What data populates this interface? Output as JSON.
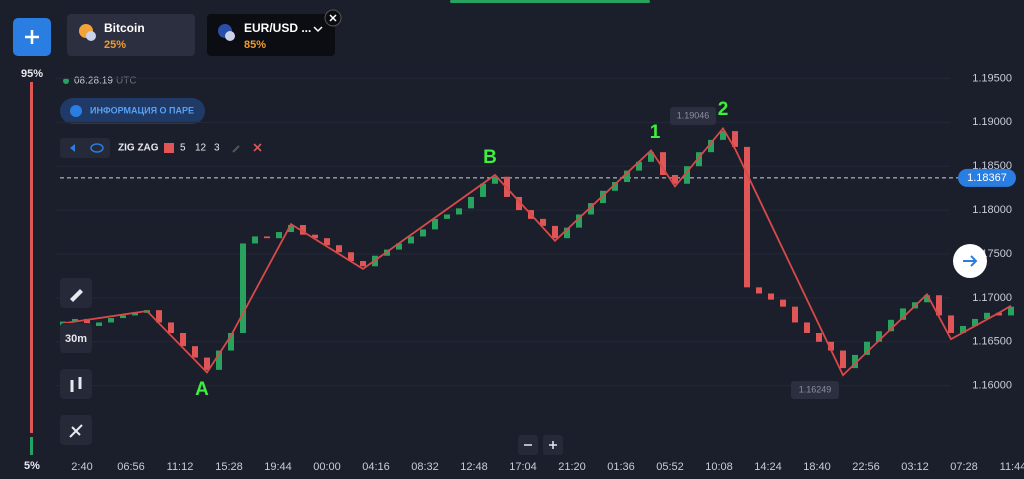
{
  "sidebar": {
    "top_label": "95%",
    "bottom_label": "5%"
  },
  "tabs": [
    {
      "name": "Bitcoin",
      "payout": "25%"
    },
    {
      "name": "EUR/USD ...",
      "payout": "85%"
    }
  ],
  "clock": {
    "time": "08:28:19",
    "zone": "UTC"
  },
  "info_button": "ИНФОРМАЦИЯ О ПАРЕ",
  "indicator": {
    "name": "ZIG ZAG",
    "params": [
      "5",
      "12",
      "3"
    ]
  },
  "timeframe": "30m",
  "chart_data": {
    "type": "candlestick",
    "up_color": "#27a35f",
    "down_color": "#e05656",
    "ylim": [
      1.1521,
      1.1971
    ],
    "yticks": [
      {
        "value": 1.195,
        "label": "1.19500"
      },
      {
        "value": 1.19,
        "label": "1.19000"
      },
      {
        "value": 1.185,
        "label": "1.18500"
      },
      {
        "value": 1.18,
        "label": "1.18000"
      },
      {
        "value": 1.175,
        "label": "1.17500"
      },
      {
        "value": 1.17,
        "label": "1.17000"
      },
      {
        "value": 1.165,
        "label": "1.16500"
      },
      {
        "value": 1.16,
        "label": "1.16000"
      }
    ],
    "xticks": [
      "2:40",
      "06:56",
      "11:12",
      "15:28",
      "19:44",
      "00:00",
      "04:16",
      "08:32",
      "12:48",
      "17:04",
      "21:20",
      "01:36",
      "05:52",
      "10:08",
      "14:24",
      "18:40",
      "22:56",
      "03:12",
      "07:28",
      "11:44"
    ],
    "open": [
      1.1668,
      1.1673,
      1.1676,
      1.1668,
      1.1672,
      1.1677,
      1.168,
      1.1683,
      1.1686,
      1.1672,
      1.166,
      1.1645,
      1.1632,
      1.1618,
      1.164,
      1.166,
      1.1762,
      1.177,
      1.1768,
      1.1775,
      1.1783,
      1.1772,
      1.1768,
      1.176,
      1.1752,
      1.1742,
      1.1736,
      1.1748,
      1.1755,
      1.1762,
      1.177,
      1.1778,
      1.179,
      1.1795,
      1.1802,
      1.1815,
      1.183,
      1.1838,
      1.1815,
      1.18,
      1.179,
      1.1782,
      1.1768,
      1.178,
      1.1795,
      1.1808,
      1.1822,
      1.1832,
      1.1845,
      1.1855,
      1.1866,
      1.184,
      1.183,
      1.185,
      1.1866,
      1.188,
      1.189,
      1.1872,
      1.1712,
      1.1705,
      1.1698,
      1.169,
      1.1672,
      1.166,
      1.165,
      1.164,
      1.162,
      1.1635,
      1.165,
      1.1662,
      1.1675,
      1.1688,
      1.1695,
      1.1703,
      1.168,
      1.166,
      1.1668,
      1.1676,
      1.1683,
      1.168
    ],
    "close": [
      1.1673,
      1.1676,
      1.1668,
      1.1672,
      1.1677,
      1.168,
      1.1683,
      1.1686,
      1.1672,
      1.166,
      1.1645,
      1.1632,
      1.1618,
      1.164,
      1.166,
      1.1762,
      1.177,
      1.1768,
      1.1775,
      1.1783,
      1.1772,
      1.1768,
      1.176,
      1.1752,
      1.1742,
      1.1736,
      1.1748,
      1.1755,
      1.1762,
      1.177,
      1.1778,
      1.179,
      1.1795,
      1.1802,
      1.1815,
      1.183,
      1.1838,
      1.1815,
      1.18,
      1.179,
      1.1782,
      1.1768,
      1.178,
      1.1795,
      1.1808,
      1.1822,
      1.1832,
      1.1845,
      1.1855,
      1.1866,
      1.184,
      1.183,
      1.185,
      1.1866,
      1.188,
      1.189,
      1.1872,
      1.1712,
      1.1705,
      1.1698,
      1.169,
      1.1672,
      1.166,
      1.165,
      1.164,
      1.162,
      1.1635,
      1.165,
      1.1662,
      1.1675,
      1.1688,
      1.1695,
      1.1703,
      1.168,
      1.166,
      1.1668,
      1.1676,
      1.1683,
      1.168,
      1.169
    ],
    "zigzag": {
      "color": "#d84a4a",
      "x": [
        0,
        7,
        12,
        14,
        19,
        25,
        36,
        41,
        49,
        51,
        55,
        56,
        65,
        72,
        74,
        78,
        79
      ],
      "values": [
        1.1671,
        1.1685,
        1.1615,
        1.1657,
        1.1784,
        1.1733,
        1.184,
        1.1765,
        1.1868,
        1.1827,
        1.1893,
        1.187,
        1.1612,
        1.1704,
        1.1653,
        1.1683,
        1.1691
      ]
    },
    "current_price": {
      "value": 1.18367,
      "label": "1.18367"
    },
    "annotations": [
      "A",
      "B",
      "1",
      "2"
    ],
    "price_tags": [
      "1.19046",
      "1.16249"
    ]
  }
}
